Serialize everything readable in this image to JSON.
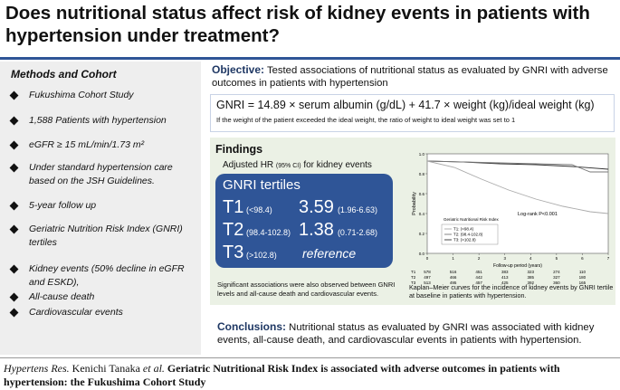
{
  "title": "Does nutritional status affect risk of kidney events in patients with hypertension under treatment?",
  "methods": {
    "heading": "Methods and Cohort",
    "items": [
      "Fukushima Cohort Study",
      "1,588 Patients with hypertension",
      "eGFR ≥ 15 mL/min/1.73 m²",
      "Under standard hypertension care based on the JSH Guidelines.",
      "5-year follow up",
      "Geriatric Nutrition Risk Index (GNRI) tertiles",
      "Kidney events (50% decline in eGFR and ESKD),",
      "All-cause death",
      "Cardiovascular events"
    ]
  },
  "objective": {
    "label": "Objective:",
    "text": "Tested associations of nutritional status as evaluated by GNRI with adverse outcomes in patients with hypertension"
  },
  "formula": {
    "text": "GNRI = 14.89 × serum albumin (g/dL) + 41.7 × weight (kg)/ideal weight (kg)",
    "note": "If the weight of the patient exceeded the ideal weight, the ratio of weight to ideal weight was set to 1"
  },
  "findings": {
    "heading": "Findings",
    "hr_label": "Adjusted HR",
    "hr_ci": "(95% CI)",
    "hr_suffix": "for kidney events",
    "box_title": "GNRI tertiles",
    "rows": [
      {
        "tertile": "T1",
        "range": "(<98.4)",
        "hr": 3.59,
        "ci": "(1.96-6.63)"
      },
      {
        "tertile": "T2",
        "range": "(98.4-102.8)",
        "hr": 1.38,
        "ci": "(0.71-2.68)"
      },
      {
        "tertile": "T3",
        "range": "(>102.8)",
        "hr": "reference"
      }
    ],
    "note": "Significant associations were also observed between GNRI levels and all-cause death and cardiovascular events."
  },
  "km": {
    "y_label": "Probability",
    "x_label": "Follow-up period (years)",
    "legend_title": "Geriatric Nutritional Risk Index",
    "legend": [
      "T1: (<98.4)",
      "T2: (98.4-102.8)",
      "T3: (>102.8)"
    ],
    "logrank": "Log-rank  P<0.001",
    "yticks": [
      {
        "value": 1,
        "label": "1.0"
      },
      {
        "value": 0.8,
        "label": "0.8"
      },
      {
        "value": 0.6,
        "label": "0.6"
      },
      {
        "value": 0.4,
        "label": "0.4"
      },
      {
        "value": 0.2,
        "label": "0.2"
      },
      {
        "value": 0,
        "label": "0.0"
      }
    ],
    "xticks": [
      0,
      1,
      2,
      3,
      4,
      5,
      6,
      7
    ],
    "risk_labels": [
      "T1",
      "T2",
      "T3"
    ],
    "risk": [
      [
        578,
        516,
        451,
        383,
        323,
        274,
        110
      ],
      [
        497,
        466,
        442,
        413,
        385,
        327,
        180
      ],
      [
        513,
        495,
        457,
        425,
        392,
        360,
        165
      ]
    ],
    "caption": "Kaplan–Meier curves for the incidence of kidney events by GNRI tertile at baseline in patients with hypertension."
  },
  "conclusions": {
    "label": "Conclusions:",
    "text": "Nutritional status as evaluated by GNRI was associated with kidney events, all-cause death, and cardiovascular events in patients with hypertension."
  },
  "citation": {
    "journal": "Hypertens Res.",
    "authors": "Kenichi Tanaka",
    "etal": "et al.",
    "title": "Geriatric Nutritional Risk Index is associated with adverse outcomes in patients with hypertension: the Fukushima Cohort Study"
  }
}
